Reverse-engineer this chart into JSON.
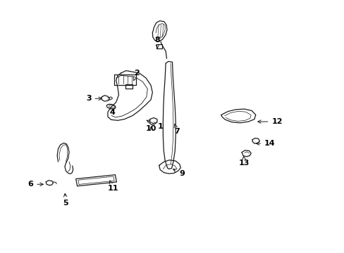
{
  "background_color": "#ffffff",
  "line_color": "#1a1a1a",
  "label_color": "#000000",
  "figsize": [
    4.89,
    3.6
  ],
  "dpi": 100,
  "labels": {
    "1": {
      "arrow_to": [
        0.415,
        0.53
      ],
      "text_at": [
        0.455,
        0.5
      ]
    },
    "2": {
      "arrow_to": [
        0.38,
        0.68
      ],
      "text_at": [
        0.385,
        0.72
      ]
    },
    "3": {
      "arrow_to": [
        0.295,
        0.615
      ],
      "text_at": [
        0.255,
        0.615
      ]
    },
    "4": {
      "arrow_to": [
        0.32,
        0.58
      ],
      "text_at": [
        0.31,
        0.558
      ]
    },
    "5": {
      "arrow_to": [
        0.175,
        0.235
      ],
      "text_at": [
        0.178,
        0.185
      ]
    },
    "6": {
      "arrow_to": [
        0.118,
        0.262
      ],
      "text_at": [
        0.08,
        0.262
      ]
    },
    "7": {
      "arrow_to": [
        0.505,
        0.52
      ],
      "text_at": [
        0.505,
        0.48
      ]
    },
    "8": {
      "arrow_to": [
        0.455,
        0.82
      ],
      "text_at": [
        0.455,
        0.855
      ]
    },
    "9": {
      "arrow_to": [
        0.495,
        0.33
      ],
      "text_at": [
        0.52,
        0.305
      ]
    },
    "10": {
      "arrow_to": [
        0.435,
        0.51
      ],
      "text_at": [
        0.42,
        0.49
      ]
    },
    "11": {
      "arrow_to": [
        0.31,
        0.28
      ],
      "text_at": [
        0.32,
        0.245
      ]
    },
    "12": {
      "arrow_to": [
        0.75,
        0.52
      ],
      "text_at": [
        0.8,
        0.52
      ]
    },
    "13": {
      "arrow_to": [
        0.715,
        0.38
      ],
      "text_at": [
        0.718,
        0.35
      ]
    },
    "14": {
      "arrow_to": [
        0.745,
        0.43
      ],
      "text_at": [
        0.778,
        0.43
      ]
    }
  }
}
